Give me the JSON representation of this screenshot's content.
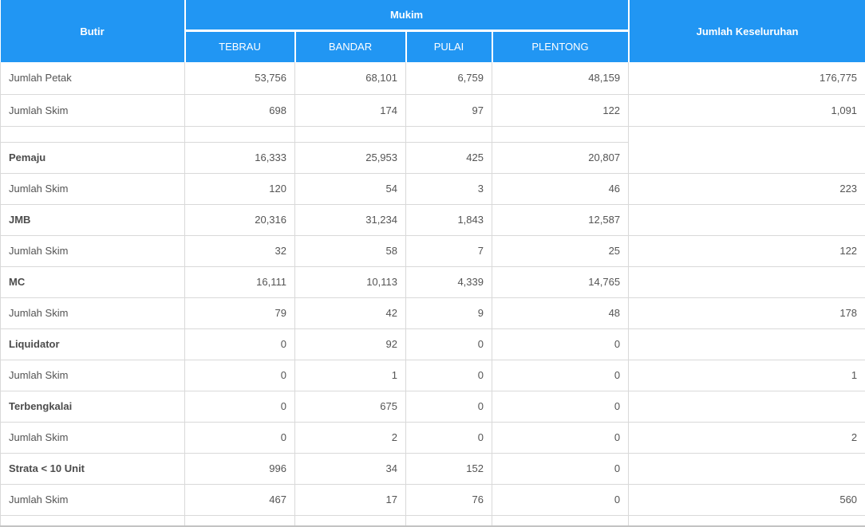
{
  "colors": {
    "header_bg": "#2196f3",
    "header_text": "#ffffff",
    "row_border": "#d9d9d9",
    "body_text": "#545454",
    "bottom_edge": "#c3c3c3"
  },
  "header": {
    "butir": "Butir",
    "mukim": "Mukim",
    "jumlah_keseluruhan": "Jumlah Keseluruhan",
    "mukim_columns": [
      "TEBRAU",
      "BANDAR",
      "PULAI",
      "PLENTONG"
    ]
  },
  "rows": [
    {
      "label": "Jumlah Petak",
      "bold": false,
      "tall": true,
      "values": [
        "53,756",
        "68,101",
        "6,759",
        "48,159"
      ],
      "total": "176,775"
    },
    {
      "label": "Jumlah Skim",
      "bold": false,
      "tall": true,
      "values": [
        "698",
        "174",
        "97",
        "122"
      ],
      "total": "1,091"
    },
    {
      "spacer": true,
      "label": "",
      "values": [
        "",
        "",
        "",
        ""
      ],
      "total": ""
    },
    {
      "label": "Pemaju",
      "bold": true,
      "values": [
        "16,333",
        "25,953",
        "425",
        "20,807"
      ],
      "total": ""
    },
    {
      "label": "Jumlah Skim",
      "bold": false,
      "values": [
        "120",
        "54",
        "3",
        "46"
      ],
      "total": "223"
    },
    {
      "label": "JMB",
      "bold": true,
      "values": [
        "20,316",
        "31,234",
        "1,843",
        "12,587"
      ],
      "total": ""
    },
    {
      "label": "Jumlah Skim",
      "bold": false,
      "values": [
        "32",
        "58",
        "7",
        "25"
      ],
      "total": "122"
    },
    {
      "label": "MC",
      "bold": true,
      "values": [
        "16,111",
        "10,113",
        "4,339",
        "14,765"
      ],
      "total": ""
    },
    {
      "label": "Jumlah Skim",
      "bold": false,
      "values": [
        "79",
        "42",
        "9",
        "48"
      ],
      "total": "178"
    },
    {
      "label": "Liquidator",
      "bold": true,
      "values": [
        "0",
        "92",
        "0",
        "0"
      ],
      "total": ""
    },
    {
      "label": "Jumlah Skim",
      "bold": false,
      "values": [
        "0",
        "1",
        "0",
        "0"
      ],
      "total": "1"
    },
    {
      "label": "Terbengkalai",
      "bold": true,
      "values": [
        "0",
        "675",
        "0",
        "0"
      ],
      "total": ""
    },
    {
      "label": "Jumlah Skim",
      "bold": false,
      "values": [
        "0",
        "2",
        "0",
        "0"
      ],
      "total": "2"
    },
    {
      "label": "Strata < 10 Unit",
      "bold": true,
      "values": [
        "996",
        "34",
        "152",
        "0"
      ],
      "total": ""
    },
    {
      "label": "Jumlah Skim",
      "bold": false,
      "values": [
        "467",
        "17",
        "76",
        "0"
      ],
      "total": "560"
    }
  ],
  "chart_data": {
    "type": "table",
    "title": "",
    "columns": [
      "Butir",
      "TEBRAU",
      "BANDAR",
      "PULAI",
      "PLENTONG",
      "Jumlah Keseluruhan"
    ],
    "column_group": {
      "label": "Mukim",
      "spans": [
        "TEBRAU",
        "BANDAR",
        "PULAI",
        "PLENTONG"
      ]
    },
    "rows": [
      [
        "Jumlah Petak",
        53756,
        68101,
        6759,
        48159,
        176775
      ],
      [
        "Jumlah Skim",
        698,
        174,
        97,
        122,
        1091
      ],
      [
        "Pemaju",
        16333,
        25953,
        425,
        20807,
        null
      ],
      [
        "Jumlah Skim",
        120,
        54,
        3,
        46,
        223
      ],
      [
        "JMB",
        20316,
        31234,
        1843,
        12587,
        null
      ],
      [
        "Jumlah Skim",
        32,
        58,
        7,
        25,
        122
      ],
      [
        "MC",
        16111,
        10113,
        4339,
        14765,
        null
      ],
      [
        "Jumlah Skim",
        79,
        42,
        9,
        48,
        178
      ],
      [
        "Liquidator",
        0,
        92,
        0,
        0,
        null
      ],
      [
        "Jumlah Skim",
        0,
        1,
        0,
        0,
        1
      ],
      [
        "Terbengkalai",
        0,
        675,
        0,
        0,
        null
      ],
      [
        "Jumlah Skim",
        0,
        2,
        0,
        0,
        2
      ],
      [
        "Strata < 10 Unit",
        996,
        34,
        152,
        0,
        null
      ],
      [
        "Jumlah Skim",
        467,
        17,
        76,
        0,
        560
      ]
    ]
  }
}
